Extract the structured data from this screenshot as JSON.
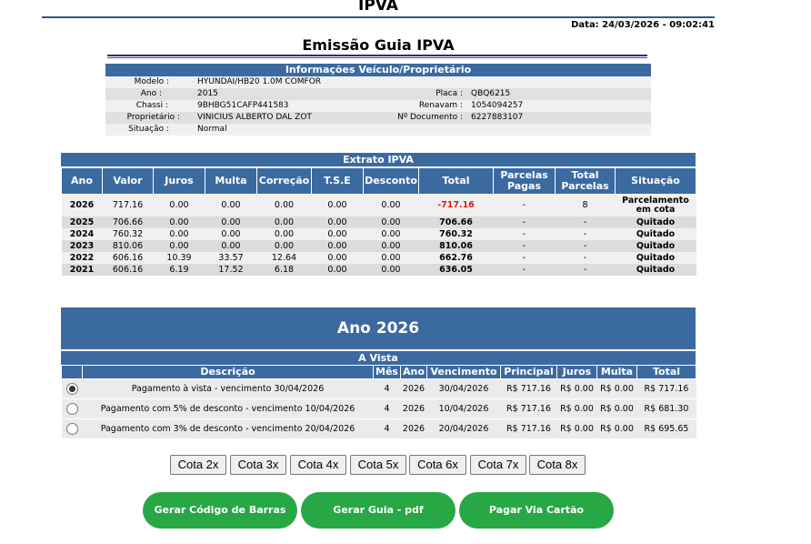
{
  "page_title": "IPVA",
  "date_line": "Data: 24/03/2026 - 09:02:41",
  "emissao_title": "Emissão Guia IPVA",
  "vehicle": {
    "header": "Informações Veículo/Proprietário",
    "modelo_label": "Modelo :",
    "modelo": "HYUNDAI/HB20 1.0M COMFOR",
    "ano_label": "Ano :",
    "ano": "2015",
    "placa_label": "Placa :",
    "placa": "QBQ6215",
    "chassi_label": "Chassi :",
    "chassi": "9BHBG51CAFP441583",
    "renavam_label": "Renavam :",
    "renavam": "1054094257",
    "proprietario_label": "Proprietário :",
    "proprietario": "VINICIUS ALBERTO DAL ZOT",
    "documento_label": "Nº Documento :",
    "documento": "6227883107",
    "situacao_label": "Situação :",
    "situacao": "Normal"
  },
  "extrato": {
    "caption": "Extrato IPVA",
    "headers": [
      "Ano",
      "Valor",
      "Juros",
      "Multa",
      "Correção",
      "T.S.E",
      "Desconto",
      "Total",
      "Parcelas Pagas",
      "Total Parcelas",
      "Situação"
    ],
    "rows": [
      [
        "2026",
        "717.16",
        "0.00",
        "0.00",
        "0.00",
        "0.00",
        "0.00",
        "-717.16",
        "-",
        "8",
        "Parcelamento em cota"
      ],
      [
        "2025",
        "706.66",
        "0.00",
        "0.00",
        "0.00",
        "0.00",
        "0.00",
        "706.66",
        "-",
        "-",
        "Quitado"
      ],
      [
        "2024",
        "760.32",
        "0.00",
        "0.00",
        "0.00",
        "0.00",
        "0.00",
        "760.32",
        "-",
        "-",
        "Quitado"
      ],
      [
        "2023",
        "810.06",
        "0.00",
        "0.00",
        "0.00",
        "0.00",
        "0.00",
        "810.06",
        "-",
        "-",
        "Quitado"
      ],
      [
        "2022",
        "606.16",
        "10.39",
        "33.57",
        "12.64",
        "0.00",
        "0.00",
        "662.76",
        "-",
        "-",
        "Quitado"
      ],
      [
        "2021",
        "606.16",
        "6.19",
        "17.52",
        "6.18",
        "0.00",
        "0.00",
        "636.05",
        "-",
        "-",
        "Quitado"
      ]
    ]
  },
  "ano_section": {
    "title": "Ano 2026",
    "vista_header": "A Vista",
    "headers": [
      "",
      "Descrição",
      "Mês",
      "Ano",
      "Vencimento",
      "Principal",
      "Juros",
      "Multa",
      "Total"
    ],
    "selected_index": 0,
    "rows": [
      [
        "Pagamento à vista - vencimento 30/04/2026",
        "4",
        "2026",
        "30/04/2026",
        "R$ 717.16",
        "R$ 0.00",
        "R$ 0.00",
        "R$ 717.16"
      ],
      [
        "Pagamento com 5% de desconto - vencimento 10/04/2026",
        "4",
        "2026",
        "10/04/2026",
        "R$ 717.16",
        "R$ 0.00",
        "R$ 0.00",
        "R$ 681.30"
      ],
      [
        "Pagamento com 3% de desconto - vencimento 20/04/2026",
        "4",
        "2026",
        "20/04/2026",
        "R$ 717.16",
        "R$ 0.00",
        "R$ 0.00",
        "R$ 695.65"
      ]
    ]
  },
  "cotas": [
    "Cota 2x",
    "Cota 3x",
    "Cota 4x",
    "Cota 5x",
    "Cota 6x",
    "Cota 7x",
    "Cota 8x"
  ],
  "actions": {
    "barcode": "Gerar Código de Barras",
    "pdf": "Gerar Guia - pdf",
    "card": "Pagar Via Cartão"
  },
  "colors": {
    "header_blue": "#3b6aa0",
    "action_green": "#28a745",
    "negative_red": "#e01818"
  }
}
